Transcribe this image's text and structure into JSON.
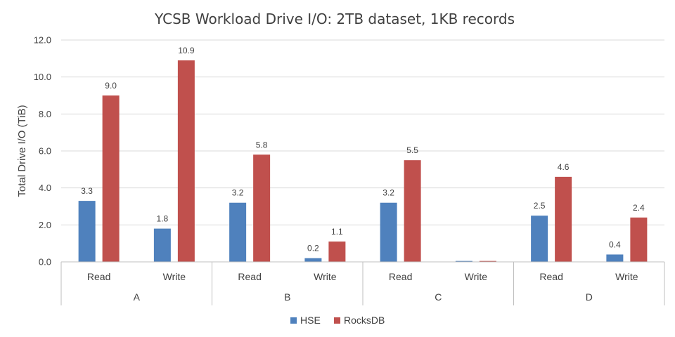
{
  "chart_data": {
    "type": "bar",
    "title": "YCSB Workload Drive I/O: 2TB dataset, 1KB records",
    "ylabel": "Total Drive I/O (TiB)",
    "xlabel": "",
    "ylim": [
      0,
      12
    ],
    "yticks": [
      "0.0",
      "2.0",
      "4.0",
      "6.0",
      "8.0",
      "10.0",
      "12.0"
    ],
    "groups": [
      "A",
      "B",
      "C",
      "D"
    ],
    "subcategories": [
      "Read",
      "Write",
      "Read",
      "Write",
      "Read",
      "Write",
      "Read",
      "Write"
    ],
    "grid": true,
    "legend_position": "bottom",
    "series": [
      {
        "name": "HSE",
        "color": "#4f81bd",
        "values": [
          3.3,
          1.8,
          3.2,
          0.2,
          3.2,
          0.05,
          2.5,
          0.4
        ],
        "labels": [
          "3.3",
          "1.8",
          "3.2",
          "0.2",
          "3.2",
          "",
          "2.5",
          "0.4"
        ]
      },
      {
        "name": "RocksDB",
        "color": "#c0504d",
        "values": [
          9.0,
          10.9,
          5.8,
          1.1,
          5.5,
          0.05,
          4.6,
          2.4
        ],
        "labels": [
          "9.0",
          "10.9",
          "5.8",
          "1.1",
          "5.5",
          "",
          "4.6",
          "2.4"
        ]
      }
    ]
  }
}
